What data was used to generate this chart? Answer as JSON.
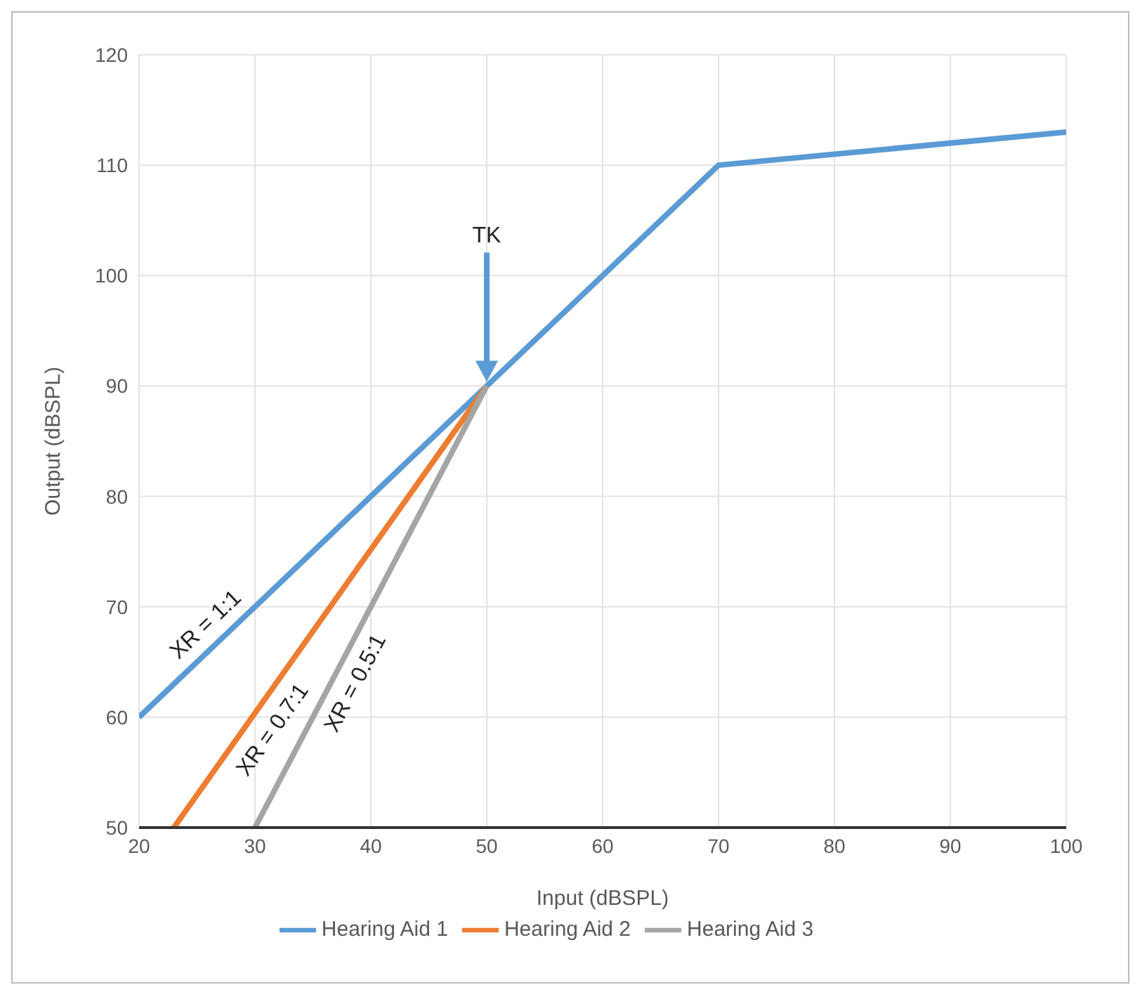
{
  "chart_data": {
    "type": "line",
    "xlabel": "Input (dBSPL)",
    "ylabel": "Output (dBSPL)",
    "xlim": [
      20,
      100
    ],
    "xticks": [
      20,
      30,
      40,
      50,
      60,
      70,
      80,
      90,
      100
    ],
    "ylim": [
      50,
      120
    ],
    "yticks": [
      50,
      60,
      70,
      80,
      90,
      100,
      110,
      120
    ],
    "grid": true,
    "legend": "bottom",
    "marker": "none",
    "line_style": "solid",
    "series": [
      {
        "name": "Hearing Aid 1",
        "color": "#5b9bd5",
        "x": [
          20,
          50,
          70,
          100
        ],
        "values": [
          60,
          90,
          110,
          113
        ]
      },
      {
        "name": "Hearing Aid 2",
        "color": "#ed7d31",
        "x": [
          23,
          50
        ],
        "values": [
          50,
          90
        ]
      },
      {
        "name": "Hearing Aid 3",
        "color": "#a5a5a5",
        "x": [
          30,
          50
        ],
        "values": [
          50,
          90
        ]
      }
    ],
    "annotations": [
      "TK",
      {
        "text": "XR = 1:1",
        "x": 27,
        "y": 67
      },
      {
        "text": "XR = 0.7:1",
        "x": 30,
        "y": 60
      },
      {
        "text": "XR = 0.5:1",
        "x": 37,
        "y": 64
      }
    ]
  }
}
